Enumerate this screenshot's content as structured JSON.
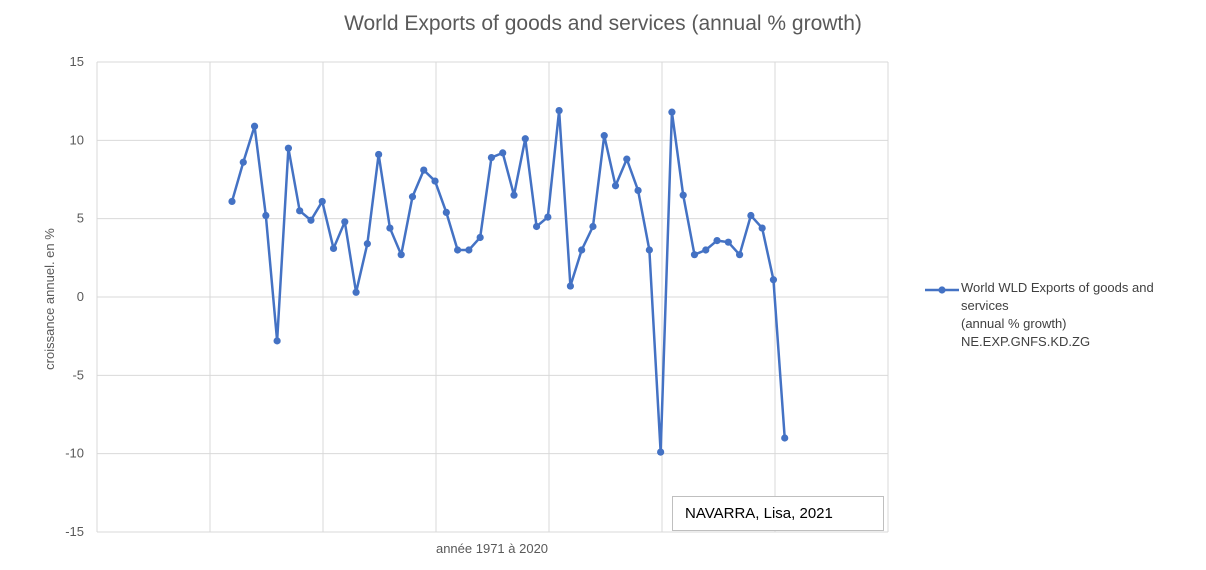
{
  "chart_data": {
    "type": "line",
    "title": "World Exports of goods and services (annual % growth)",
    "xlabel": "année 1971 à 2020",
    "ylabel": "croissance annuel. en %",
    "ylim": [
      -15,
      15
    ],
    "yticks": [
      15,
      10,
      5,
      0,
      -5,
      -10,
      -15
    ],
    "grid": true,
    "legend_position": "right",
    "x": [
      1971,
      1972,
      1973,
      1974,
      1975,
      1976,
      1977,
      1978,
      1979,
      1980,
      1981,
      1982,
      1983,
      1984,
      1985,
      1986,
      1987,
      1988,
      1989,
      1990,
      1991,
      1992,
      1993,
      1994,
      1995,
      1996,
      1997,
      1998,
      1999,
      2000,
      2001,
      2002,
      2003,
      2004,
      2005,
      2006,
      2007,
      2008,
      2009,
      2010,
      2011,
      2012,
      2013,
      2014,
      2015,
      2016,
      2017,
      2018,
      2019,
      2020
    ],
    "series": [
      {
        "name": "World WLD Exports of goods and services (annual % growth) NE.EXP.GNFS.KD.ZG",
        "color": "#4472c4",
        "values": [
          6.1,
          8.6,
          10.9,
          5.2,
          -2.8,
          9.5,
          5.5,
          4.9,
          6.1,
          3.1,
          4.8,
          0.3,
          3.4,
          9.1,
          4.4,
          2.7,
          6.4,
          8.1,
          7.4,
          5.4,
          3.0,
          3.0,
          3.8,
          8.9,
          9.2,
          6.5,
          10.1,
          4.5,
          5.1,
          11.9,
          0.7,
          3.0,
          4.5,
          10.3,
          7.1,
          8.8,
          6.8,
          3.0,
          -9.9,
          11.8,
          6.5,
          2.7,
          3.0,
          3.6,
          3.5,
          2.7,
          5.2,
          4.4,
          1.1,
          -9.0
        ]
      }
    ]
  },
  "legend": {
    "entry": "World WLD Exports of goods and services\n(annual % growth)\nNE.EXP.GNFS.KD.ZG"
  },
  "credit_box": {
    "text": "NAVARRA, Lisa, 2021"
  }
}
